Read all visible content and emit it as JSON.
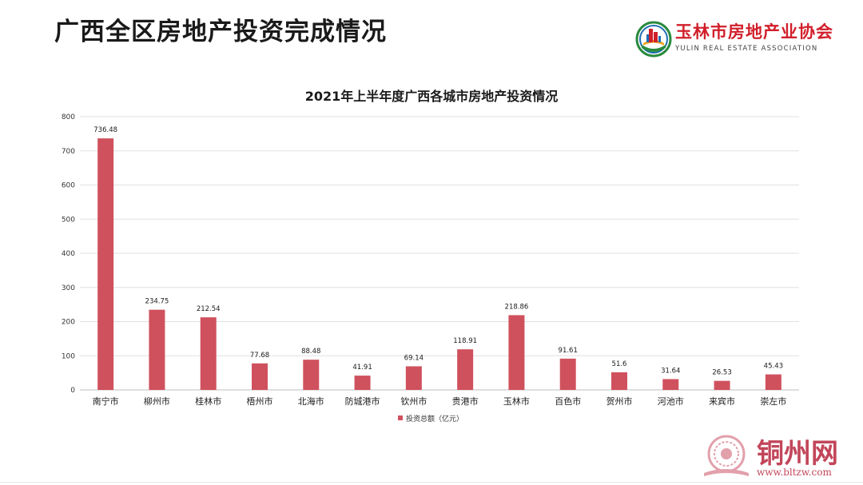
{
  "slide": {
    "title": "广西全区房地产投资完成情况"
  },
  "logo": {
    "name_cn": "玉林市房地产业协会",
    "name_en": "YULIN REAL ESTATE ASSOCIATION"
  },
  "watermark": {
    "name_cn": "铜州网",
    "url": "www.bltzw.com"
  },
  "colors": {
    "bar": "#d0515e",
    "grid": "#e0e0e0",
    "axis": "#bfbfbf",
    "text": "#1a1a1a"
  },
  "chart_data": {
    "type": "bar",
    "title": "2021年上半年度广西各城市房地产投资情况",
    "xlabel": "",
    "ylabel": "",
    "categories": [
      "南宁市",
      "柳州市",
      "桂林市",
      "梧州市",
      "北海市",
      "防城港市",
      "钦州市",
      "贵港市",
      "玉林市",
      "百色市",
      "贺州市",
      "河池市",
      "来宾市",
      "崇左市"
    ],
    "series": [
      {
        "name": "投资总额（亿元）",
        "values": [
          736.48,
          234.75,
          212.54,
          77.68,
          88.48,
          41.91,
          69.14,
          118.91,
          218.86,
          91.61,
          51.6,
          31.64,
          26.53,
          45.43
        ],
        "labels": [
          "736.48",
          "234.75",
          "212.54",
          "77.68",
          "88.48",
          "41.91",
          "69.14",
          "118.91",
          "218.86",
          "91.61",
          "51.6",
          "31.64",
          "26.53",
          "45.43"
        ]
      }
    ],
    "ylim": [
      0,
      800
    ],
    "yticks": [
      0,
      100,
      200,
      300,
      400,
      500,
      600,
      700,
      800
    ],
    "grid": true,
    "legend_position": "bottom"
  }
}
